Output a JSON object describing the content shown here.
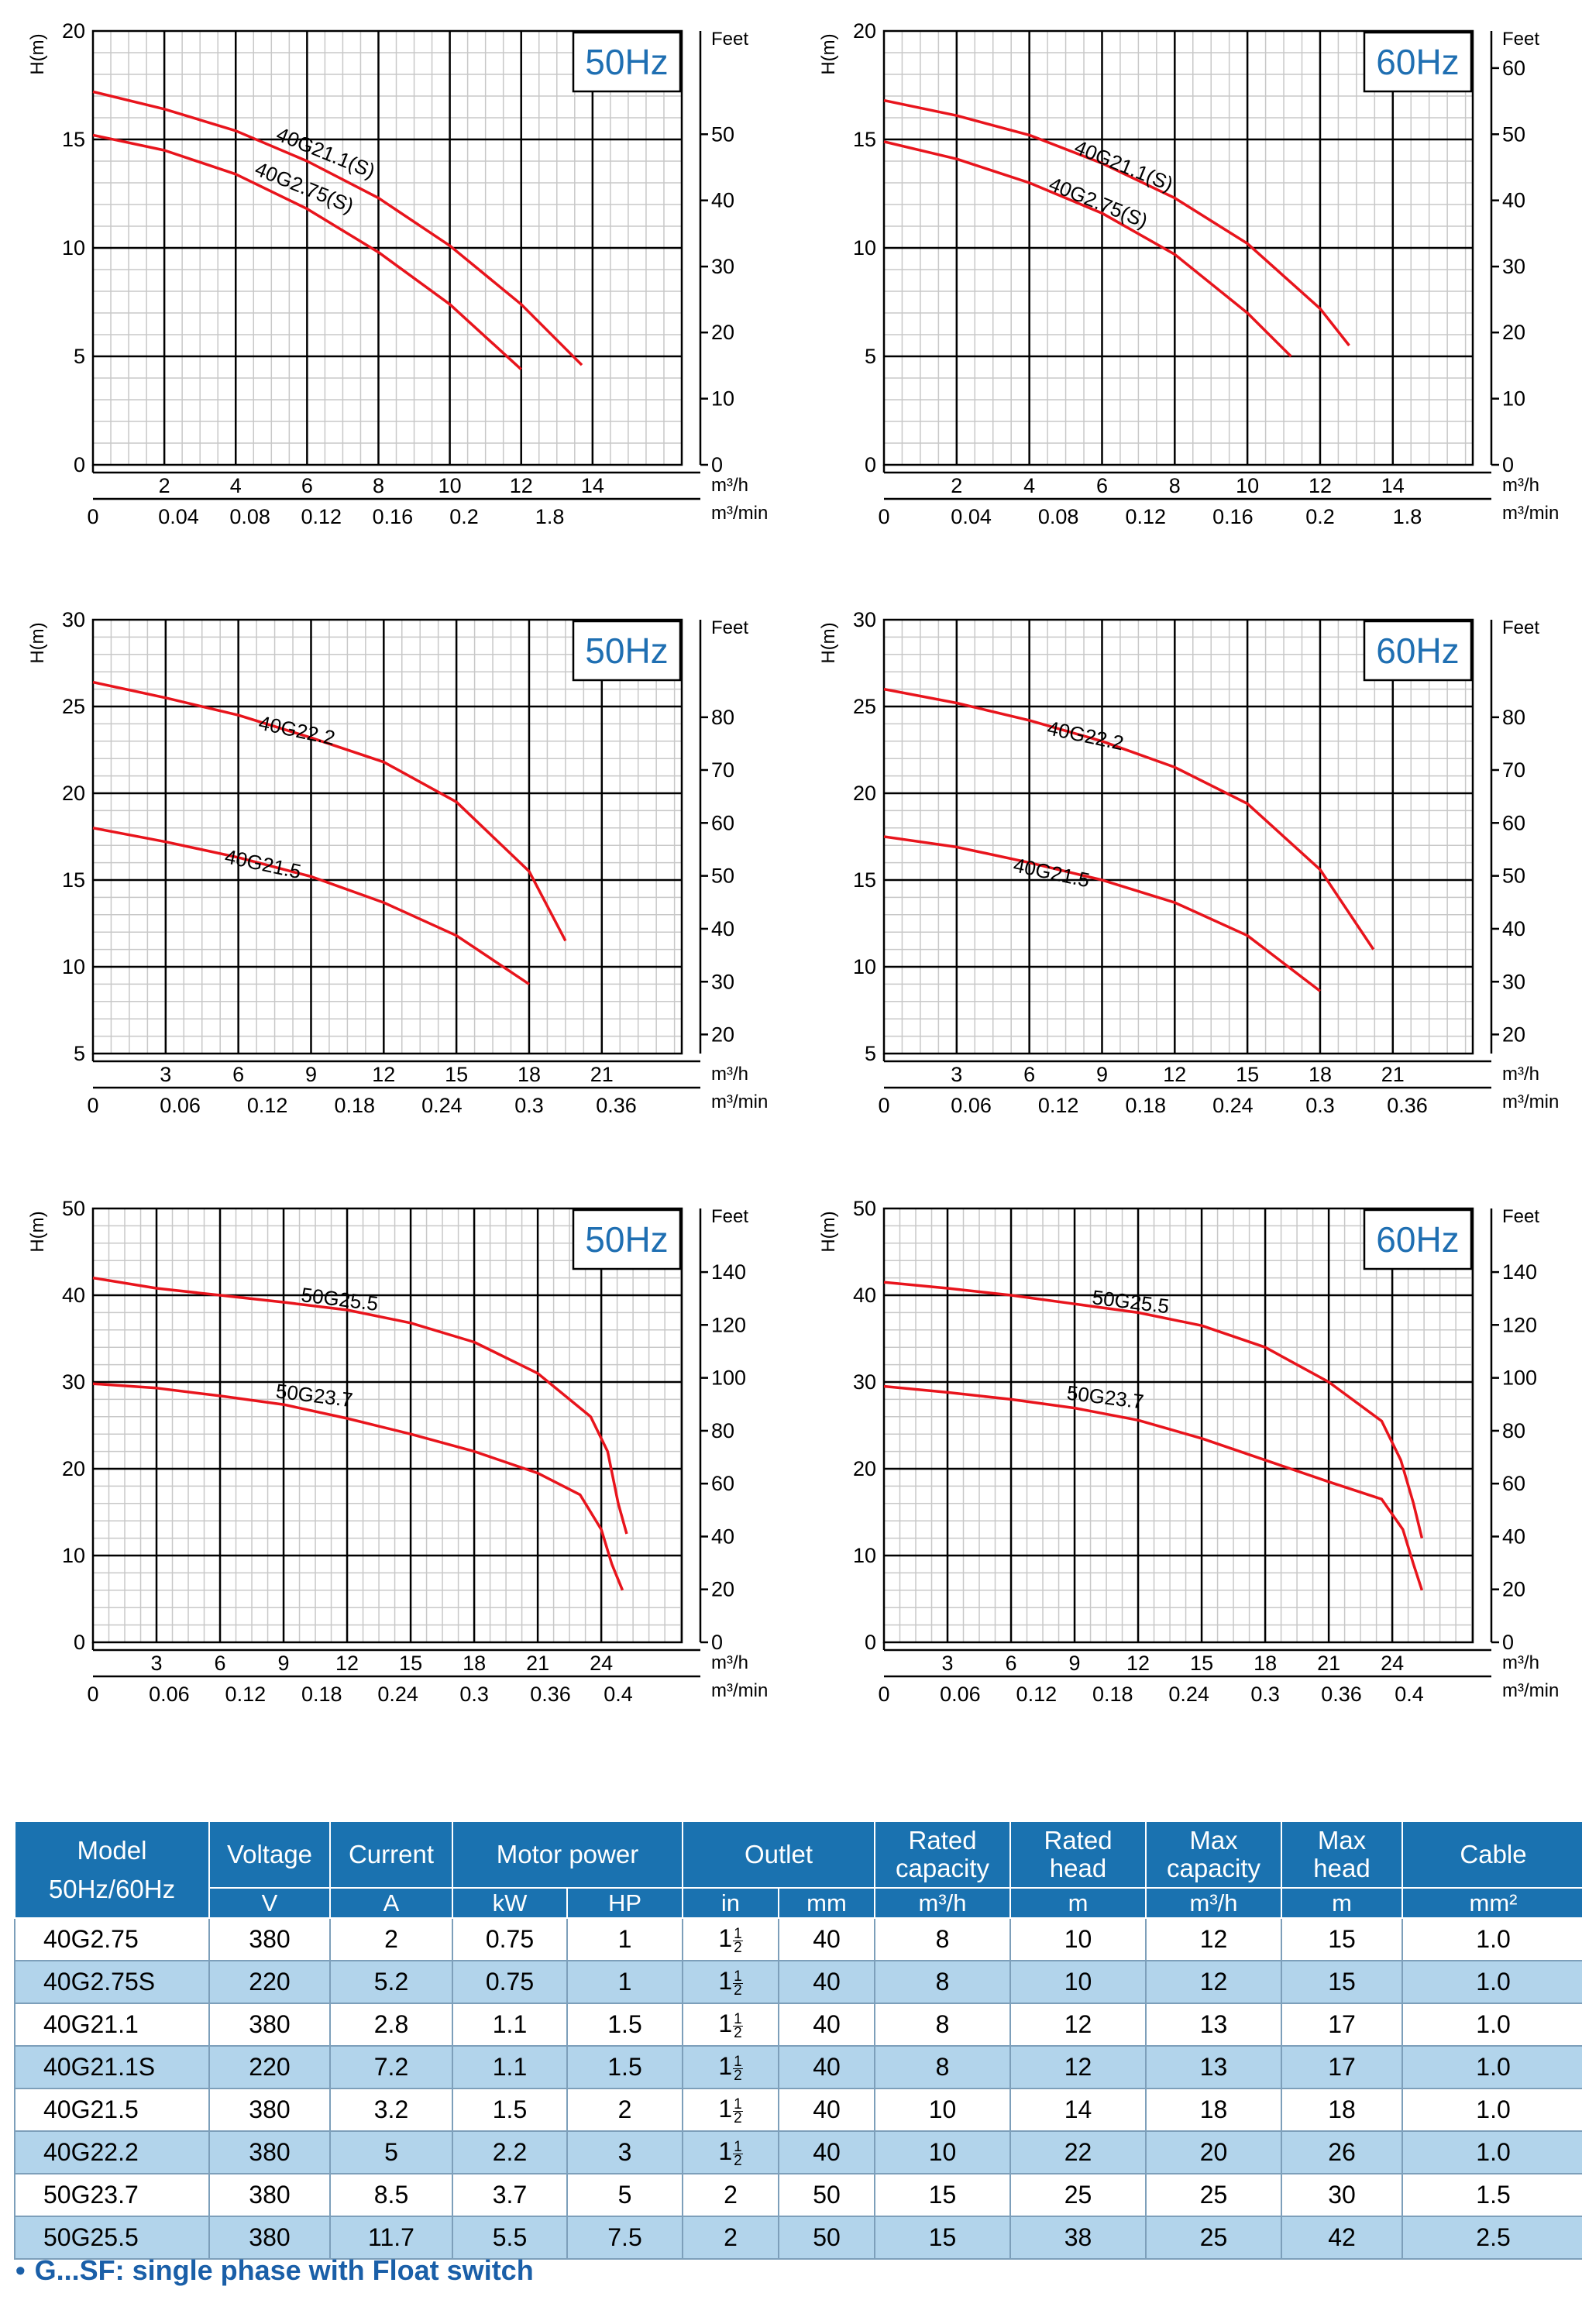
{
  "common": {
    "y_axis_title": "H(m)",
    "right_axis_title": "Feet",
    "flow_unit_h": "m³/h",
    "flow_unit_min": "m³/min",
    "curve_color": "#e8141c",
    "frequency_color": "#1f6fb2"
  },
  "chart_data": [
    {
      "type": "line",
      "frequency": "50Hz",
      "xlabel": "m³/h",
      "ylabel": "H(m)",
      "xlim": [
        0,
        16.5
      ],
      "ylim": [
        0,
        20
      ],
      "grid": true,
      "x_ticks": [
        "2",
        "4",
        "6",
        "8",
        "10",
        "12",
        "14"
      ],
      "x_tick_values": [
        2,
        4,
        6,
        8,
        10,
        12,
        14
      ],
      "x2_ticks": [
        "0",
        "0.04",
        "0.08",
        "0.12",
        "0.16",
        "0.2",
        "1.8"
      ],
      "x2_tick_values": [
        0,
        2.4,
        4.4,
        6.4,
        8.4,
        10.4,
        12.8
      ],
      "y_ticks": [
        "0",
        "5",
        "10",
        "15",
        "20"
      ],
      "y_tick_values": [
        0,
        5,
        10,
        15,
        20
      ],
      "feet_ticks": [
        "0",
        "10",
        "20",
        "30",
        "40",
        "50"
      ],
      "feet_tick_values": [
        0,
        3.05,
        6.1,
        9.14,
        12.19,
        15.24
      ],
      "series": [
        {
          "name": "40G21.1(S)",
          "x": [
            0,
            2,
            4,
            6,
            8,
            10,
            12,
            13.7
          ],
          "y": [
            17.2,
            16.4,
            15.4,
            14.0,
            12.3,
            10.1,
            7.4,
            4.6
          ],
          "label_x": 5.1,
          "label_y": 15.0,
          "label_rot": 22
        },
        {
          "name": "40G2.75(S)",
          "x": [
            0,
            2,
            4,
            6,
            8,
            10,
            12
          ],
          "y": [
            15.2,
            14.5,
            13.4,
            11.8,
            9.8,
            7.4,
            4.4
          ],
          "label_x": 4.5,
          "label_y": 13.4,
          "label_rot": 22
        }
      ]
    },
    {
      "type": "line",
      "frequency": "60Hz",
      "xlabel": "m³/h",
      "ylabel": "H(m)",
      "xlim": [
        0,
        16.2
      ],
      "ylim": [
        0,
        20
      ],
      "grid": true,
      "x_ticks": [
        "2",
        "4",
        "6",
        "8",
        "10",
        "12",
        "14"
      ],
      "x_tick_values": [
        2,
        4,
        6,
        8,
        10,
        12,
        14
      ],
      "x2_ticks": [
        "0",
        "0.04",
        "0.08",
        "0.12",
        "0.16",
        "0.2",
        "1.8"
      ],
      "x2_tick_values": [
        0,
        2.4,
        4.8,
        7.2,
        9.6,
        12.0,
        14.4
      ],
      "y_ticks": [
        "0",
        "5",
        "10",
        "15",
        "20"
      ],
      "y_tick_values": [
        0,
        5,
        10,
        15,
        20
      ],
      "feet_ticks": [
        "0",
        "10",
        "20",
        "30",
        "40",
        "50",
        "60"
      ],
      "feet_tick_values": [
        0,
        3.05,
        6.1,
        9.14,
        12.19,
        15.24,
        18.29
      ],
      "series": [
        {
          "name": "40G21.1(S)",
          "x": [
            0,
            2,
            4,
            6,
            8,
            10,
            12,
            12.8
          ],
          "y": [
            16.8,
            16.1,
            15.2,
            13.9,
            12.3,
            10.2,
            7.2,
            5.5
          ],
          "label_x": 5.2,
          "label_y": 14.4,
          "label_rot": 22
        },
        {
          "name": "40G2.75(S)",
          "x": [
            0,
            2,
            4,
            6,
            8,
            10,
            11.2
          ],
          "y": [
            14.9,
            14.1,
            13.0,
            11.6,
            9.7,
            7.0,
            5.0
          ],
          "label_x": 4.5,
          "label_y": 12.7,
          "label_rot": 22
        }
      ]
    },
    {
      "type": "line",
      "frequency": "50Hz",
      "xlabel": "m³/h",
      "ylabel": "H(m)",
      "xlim": [
        0,
        24.3
      ],
      "ylim": [
        5,
        30
      ],
      "grid": true,
      "x_ticks": [
        "3",
        "6",
        "9",
        "12",
        "15",
        "18",
        "21"
      ],
      "x_tick_values": [
        3,
        6,
        9,
        12,
        15,
        18,
        21
      ],
      "x2_ticks": [
        "0",
        "0.06",
        "0.12",
        "0.18",
        "0.24",
        "0.3",
        "0.36"
      ],
      "x2_tick_values": [
        0,
        3.6,
        7.2,
        10.8,
        14.4,
        18.0,
        21.6
      ],
      "y_ticks": [
        "5",
        "10",
        "15",
        "20",
        "25",
        "30"
      ],
      "y_tick_values": [
        5,
        10,
        15,
        20,
        25,
        30
      ],
      "feet_ticks": [
        "20",
        "30",
        "40",
        "50",
        "60",
        "70",
        "80"
      ],
      "feet_tick_values": [
        6.1,
        9.14,
        12.19,
        15.24,
        18.29,
        21.34,
        24.38
      ],
      "series": [
        {
          "name": "40G22.2",
          "x": [
            0,
            3,
            6,
            9,
            12,
            15,
            18,
            19.5
          ],
          "y": [
            26.4,
            25.5,
            24.5,
            23.2,
            21.8,
            19.5,
            15.5,
            11.5
          ],
          "label_x": 6.8,
          "label_y": 23.7,
          "label_rot": 12
        },
        {
          "name": "40G21.5",
          "x": [
            0,
            3,
            6,
            9,
            12,
            15,
            18
          ],
          "y": [
            18.0,
            17.2,
            16.3,
            15.2,
            13.7,
            11.8,
            9.0
          ],
          "label_x": 5.4,
          "label_y": 16.0,
          "label_rot": 12
        }
      ]
    },
    {
      "type": "line",
      "frequency": "60Hz",
      "xlabel": "m³/h",
      "ylabel": "H(m)",
      "xlim": [
        0,
        24.3
      ],
      "ylim": [
        5,
        30
      ],
      "grid": true,
      "x_ticks": [
        "3",
        "6",
        "9",
        "12",
        "15",
        "18",
        "21"
      ],
      "x_tick_values": [
        3,
        6,
        9,
        12,
        15,
        18,
        21
      ],
      "x2_ticks": [
        "0",
        "0.06",
        "0.12",
        "0.18",
        "0.24",
        "0.3",
        "0.36"
      ],
      "x2_tick_values": [
        0,
        3.6,
        7.2,
        10.8,
        14.4,
        18.0,
        21.6
      ],
      "y_ticks": [
        "5",
        "10",
        "15",
        "20",
        "25",
        "30"
      ],
      "y_tick_values": [
        5,
        10,
        15,
        20,
        25,
        30
      ],
      "feet_ticks": [
        "20",
        "30",
        "40",
        "50",
        "60",
        "70",
        "80"
      ],
      "feet_tick_values": [
        6.1,
        9.14,
        12.19,
        15.24,
        18.29,
        21.34,
        24.38
      ],
      "series": [
        {
          "name": "40G22.2",
          "x": [
            0,
            3,
            6,
            9,
            12,
            15,
            18,
            20.2
          ],
          "y": [
            26.0,
            25.2,
            24.2,
            23.0,
            21.5,
            19.4,
            15.6,
            11.0
          ],
          "label_x": 6.7,
          "label_y": 23.4,
          "label_rot": 12
        },
        {
          "name": "40G21.5",
          "x": [
            0,
            3,
            6,
            9,
            12,
            15,
            18
          ],
          "y": [
            17.5,
            16.9,
            16.0,
            15.0,
            13.7,
            11.8,
            8.6
          ],
          "label_x": 5.3,
          "label_y": 15.5,
          "label_rot": 12
        }
      ]
    },
    {
      "type": "line",
      "frequency": "50Hz",
      "xlabel": "m³/h",
      "ylabel": "H(m)",
      "xlim": [
        0,
        27.8
      ],
      "ylim": [
        0,
        50
      ],
      "grid": true,
      "x_ticks": [
        "3",
        "6",
        "9",
        "12",
        "15",
        "18",
        "21",
        "24"
      ],
      "x_tick_values": [
        3,
        6,
        9,
        12,
        15,
        18,
        21,
        24
      ],
      "x2_ticks": [
        "0",
        "0.06",
        "0.12",
        "0.18",
        "0.24",
        "0.3",
        "0.36",
        "0.4"
      ],
      "x2_tick_values": [
        0,
        3.6,
        7.2,
        10.8,
        14.4,
        18.0,
        21.6,
        24.8
      ],
      "y_ticks": [
        "0",
        "10",
        "20",
        "30",
        "40",
        "50"
      ],
      "y_tick_values": [
        0,
        10,
        20,
        30,
        40,
        50
      ],
      "feet_ticks": [
        "0",
        "20",
        "40",
        "60",
        "80",
        "100",
        "120",
        "140"
      ],
      "feet_tick_values": [
        0,
        6.1,
        12.19,
        18.29,
        24.38,
        30.48,
        36.58,
        42.67
      ],
      "series": [
        {
          "name": "50G25.5",
          "x": [
            0,
            3,
            6,
            9,
            12,
            15,
            18,
            21,
            23.5,
            24.3,
            24.8,
            25.2
          ],
          "y": [
            42.0,
            40.8,
            40.0,
            39.2,
            38.3,
            36.8,
            34.6,
            31.0,
            26.0,
            22.0,
            16.0,
            12.5
          ],
          "label_x": 9.8,
          "label_y": 39.3,
          "label_rot": 7
        },
        {
          "name": "50G23.7",
          "x": [
            0,
            3,
            6,
            9,
            12,
            15,
            18,
            21,
            23,
            24,
            24.5,
            25
          ],
          "y": [
            29.8,
            29.3,
            28.4,
            27.4,
            25.8,
            24.0,
            22.0,
            19.5,
            17.0,
            13.0,
            9.0,
            6.0
          ],
          "label_x": 8.6,
          "label_y": 28.2,
          "label_rot": 7
        }
      ]
    },
    {
      "type": "line",
      "frequency": "60Hz",
      "xlabel": "m³/h",
      "ylabel": "H(m)",
      "xlim": [
        0,
        27.8
      ],
      "ylim": [
        0,
        50
      ],
      "grid": true,
      "x_ticks": [
        "3",
        "6",
        "9",
        "12",
        "15",
        "18",
        "21",
        "24"
      ],
      "x_tick_values": [
        3,
        6,
        9,
        12,
        15,
        18,
        21,
        24
      ],
      "x2_ticks": [
        "0",
        "0.06",
        "0.12",
        "0.18",
        "0.24",
        "0.3",
        "0.36",
        "0.4"
      ],
      "x2_tick_values": [
        0,
        3.6,
        7.2,
        10.8,
        14.4,
        18.0,
        21.6,
        24.8
      ],
      "y_ticks": [
        "0",
        "10",
        "20",
        "30",
        "40",
        "50"
      ],
      "y_tick_values": [
        0,
        10,
        20,
        30,
        40,
        50
      ],
      "feet_ticks": [
        "0",
        "20",
        "40",
        "60",
        "80",
        "100",
        "120",
        "140"
      ],
      "feet_tick_values": [
        0,
        6.1,
        12.19,
        18.29,
        24.38,
        30.48,
        36.58,
        42.67
      ],
      "series": [
        {
          "name": "50G25.5",
          "x": [
            0,
            3,
            6,
            9,
            12,
            15,
            18,
            21,
            23.5,
            24.4,
            25.0,
            25.4
          ],
          "y": [
            41.5,
            40.8,
            40.0,
            39.0,
            38.0,
            36.5,
            34.0,
            30.0,
            25.5,
            21.0,
            16.0,
            12.0
          ],
          "label_x": 9.8,
          "label_y": 39.0,
          "label_rot": 7
        },
        {
          "name": "50G23.7",
          "x": [
            0,
            3,
            6,
            9,
            12,
            15,
            18,
            21,
            23.5,
            24.5,
            25.0,
            25.4
          ],
          "y": [
            29.5,
            28.8,
            28.0,
            27.0,
            25.6,
            23.5,
            21.0,
            18.5,
            16.5,
            13.0,
            9.0,
            6.0
          ],
          "label_x": 8.6,
          "label_y": 28.0,
          "label_rot": 7
        }
      ]
    }
  ],
  "table": {
    "headers": [
      {
        "top": "Model",
        "bottom": "50Hz/60Hz"
      },
      {
        "top": "Voltage",
        "unit": "V"
      },
      {
        "top": "Current",
        "unit": "A"
      },
      {
        "top": "Motor power",
        "units": [
          "kW",
          "HP"
        ]
      },
      {
        "top": "Outlet",
        "units": [
          "in",
          "mm"
        ]
      },
      {
        "top": "Rated",
        "top2": "capacity",
        "unit": "m³/h"
      },
      {
        "top": "Rated",
        "top2": "head",
        "unit": "m"
      },
      {
        "top": "Max",
        "top2": "capacity",
        "unit": "m³/h"
      },
      {
        "top": "Max",
        "top2": "head",
        "unit": "m"
      },
      {
        "top": "Cable",
        "unit": "mm²"
      }
    ],
    "rows": [
      {
        "model": "40G2.75",
        "voltage": "380",
        "current": "2",
        "kw": "0.75",
        "hp": "1",
        "in_whole": "1",
        "in_num": "1",
        "in_den": "2",
        "mm": "40",
        "rated_capacity": "8",
        "rated_head": "10",
        "max_capacity": "12",
        "max_head": "15",
        "cable": "1.0"
      },
      {
        "model": "40G2.75S",
        "voltage": "220",
        "current": "5.2",
        "kw": "0.75",
        "hp": "1",
        "in_whole": "1",
        "in_num": "1",
        "in_den": "2",
        "mm": "40",
        "rated_capacity": "8",
        "rated_head": "10",
        "max_capacity": "12",
        "max_head": "15",
        "cable": "1.0"
      },
      {
        "model": "40G21.1",
        "voltage": "380",
        "current": "2.8",
        "kw": "1.1",
        "hp": "1.5",
        "in_whole": "1",
        "in_num": "1",
        "in_den": "2",
        "mm": "40",
        "rated_capacity": "8",
        "rated_head": "12",
        "max_capacity": "13",
        "max_head": "17",
        "cable": "1.0"
      },
      {
        "model": "40G21.1S",
        "voltage": "220",
        "current": "7.2",
        "kw": "1.1",
        "hp": "1.5",
        "in_whole": "1",
        "in_num": "1",
        "in_den": "2",
        "mm": "40",
        "rated_capacity": "8",
        "rated_head": "12",
        "max_capacity": "13",
        "max_head": "17",
        "cable": "1.0"
      },
      {
        "model": "40G21.5",
        "voltage": "380",
        "current": "3.2",
        "kw": "1.5",
        "hp": "2",
        "in_whole": "1",
        "in_num": "1",
        "in_den": "2",
        "mm": "40",
        "rated_capacity": "10",
        "rated_head": "14",
        "max_capacity": "18",
        "max_head": "18",
        "cable": "1.0"
      },
      {
        "model": "40G22.2",
        "voltage": "380",
        "current": "5",
        "kw": "2.2",
        "hp": "3",
        "in_whole": "1",
        "in_num": "1",
        "in_den": "2",
        "mm": "40",
        "rated_capacity": "10",
        "rated_head": "22",
        "max_capacity": "20",
        "max_head": "26",
        "cable": "1.0"
      },
      {
        "model": "50G23.7",
        "voltage": "380",
        "current": "8.5",
        "kw": "3.7",
        "hp": "5",
        "in_whole": "2",
        "in_num": "",
        "in_den": "",
        "mm": "50",
        "rated_capacity": "15",
        "rated_head": "25",
        "max_capacity": "25",
        "max_head": "30",
        "cable": "1.5"
      },
      {
        "model": "50G25.5",
        "voltage": "380",
        "current": "11.7",
        "kw": "5.5",
        "hp": "7.5",
        "in_whole": "2",
        "in_num": "",
        "in_den": "",
        "mm": "50",
        "rated_capacity": "15",
        "rated_head": "38",
        "max_capacity": "25",
        "max_head": "42",
        "cable": "2.5"
      }
    ]
  },
  "footnote": {
    "bullet": "•",
    "text": "G...SF: single phase with Float switch"
  }
}
